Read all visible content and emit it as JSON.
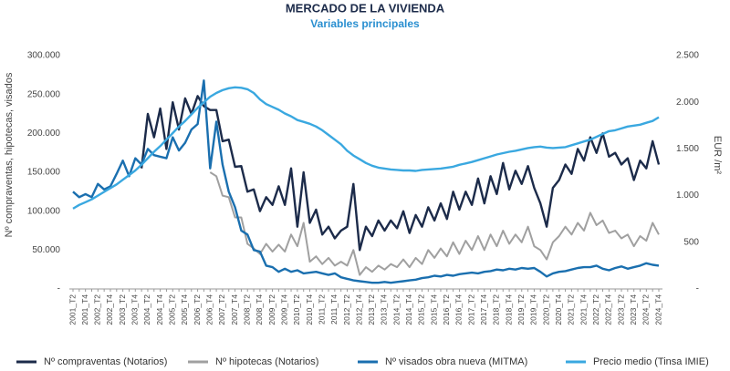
{
  "chart_data": {
    "type": "line",
    "title": "MERCADO DE LA VIVIENDA",
    "subtitle": "Variables principales",
    "y_label": "Nº compraventas, hipotecas, visados",
    "y2_label": "EUR /m²",
    "categories": [
      "2001_T2",
      null,
      "2001_T4",
      null,
      "2002_T2",
      null,
      "2002_T4",
      null,
      "2003_T2",
      null,
      "2003_T4",
      null,
      "2004_T2",
      null,
      "2004_T4",
      null,
      "2005_T2",
      null,
      "2005_T4",
      null,
      "2006_T2",
      null,
      "2006_T4",
      null,
      "2007_T2",
      null,
      "2007_T4",
      null,
      "2008_T2",
      null,
      "2008_T4",
      null,
      "2009_T2",
      null,
      "2009_T4",
      null,
      "2010_T2",
      null,
      "2010_T4",
      null,
      "2011_T2",
      null,
      "2011_T4",
      null,
      "2012_T2",
      null,
      "2012_T4",
      null,
      "2013_T2",
      null,
      "2013_T4",
      null,
      "2014_T2",
      null,
      "2014_T4",
      null,
      "2015_T2",
      null,
      "2015_T4",
      null,
      "2016_T2",
      null,
      "2016_T4",
      null,
      "2017_T2",
      null,
      "2017_T4",
      null,
      "2018_T2",
      null,
      "2018_T4",
      null,
      "2019_T2",
      null,
      "2019_T4",
      null,
      "2020_T2",
      null,
      "2020_T4",
      null,
      "2021_T2",
      null,
      "2021_T4",
      null,
      "2022_T2",
      null,
      "2022_T4",
      null,
      "2023_T2",
      null,
      "2023_T4",
      null,
      "2024_T2",
      null,
      "2024_T4"
    ],
    "series": [
      {
        "name": "Nº compraventas (Notarios)",
        "color": "#1c2b4a",
        "values": [
          null,
          null,
          null,
          null,
          null,
          null,
          null,
          null,
          null,
          null,
          null,
          155000,
          225000,
          195000,
          232000,
          180000,
          240000,
          205000,
          245000,
          225000,
          248000,
          235000,
          230000,
          230000,
          190000,
          192000,
          157000,
          158000,
          125000,
          128000,
          100000,
          118000,
          108000,
          132000,
          108000,
          155000,
          80000,
          150000,
          85000,
          102000,
          70000,
          80000,
          65000,
          75000,
          80000,
          135000,
          50000,
          80000,
          68000,
          88000,
          75000,
          88000,
          78000,
          100000,
          72000,
          95000,
          80000,
          105000,
          88000,
          110000,
          90000,
          125000,
          102000,
          125000,
          108000,
          142000,
          110000,
          145000,
          122000,
          162000,
          128000,
          152000,
          135000,
          158000,
          130000,
          110000,
          80000,
          130000,
          140000,
          160000,
          148000,
          180000,
          165000,
          195000,
          175000,
          200000,
          170000,
          175000,
          160000,
          168000,
          140000,
          165000,
          155000,
          190000,
          160000
        ]
      },
      {
        "name": "Nº hipotecas (Notarios)",
        "color": "#a0a0a0",
        "values": [
          null,
          null,
          null,
          null,
          null,
          null,
          null,
          null,
          null,
          null,
          null,
          null,
          null,
          null,
          null,
          null,
          null,
          null,
          null,
          null,
          null,
          null,
          150000,
          145000,
          120000,
          118000,
          92000,
          92000,
          58000,
          52000,
          45000,
          58000,
          48000,
          57000,
          48000,
          70000,
          55000,
          85000,
          35000,
          42000,
          32000,
          40000,
          30000,
          35000,
          30000,
          50000,
          18000,
          28000,
          22000,
          30000,
          25000,
          32000,
          28000,
          38000,
          28000,
          40000,
          32000,
          50000,
          40000,
          52000,
          42000,
          60000,
          45000,
          62000,
          50000,
          68000,
          50000,
          70000,
          55000,
          75000,
          58000,
          70000,
          60000,
          80000,
          55000,
          50000,
          38000,
          60000,
          68000,
          80000,
          70000,
          85000,
          75000,
          98000,
          82000,
          88000,
          72000,
          75000,
          65000,
          70000,
          55000,
          68000,
          62000,
          85000,
          70000
        ]
      },
      {
        "name": "Nº visados obra nueva (MITMA)",
        "color": "#1a6faf",
        "values": [
          125000,
          118000,
          122000,
          118000,
          135000,
          128000,
          132000,
          148000,
          165000,
          145000,
          168000,
          160000,
          180000,
          172000,
          170000,
          168000,
          195000,
          178000,
          188000,
          205000,
          212000,
          268000,
          155000,
          215000,
          160000,
          125000,
          105000,
          75000,
          70000,
          50000,
          48000,
          30000,
          28000,
          22000,
          26000,
          22000,
          24000,
          20000,
          21000,
          22000,
          20000,
          18000,
          20000,
          15000,
          13000,
          11000,
          10000,
          9000,
          8000,
          8000,
          9000,
          8000,
          9000,
          10000,
          11000,
          12000,
          14000,
          15000,
          17000,
          16000,
          18000,
          17000,
          19000,
          20000,
          21000,
          20000,
          22000,
          23000,
          25000,
          24000,
          26000,
          25000,
          27000,
          26000,
          27000,
          22000,
          16000,
          20000,
          22000,
          23000,
          25000,
          27000,
          28000,
          28000,
          30000,
          26000,
          24000,
          27000,
          29000,
          26000,
          28000,
          30000,
          33000,
          31000,
          30000
        ]
      },
      {
        "name": "Precio medio (Tinsa IMIE)",
        "color": "#3aa8e0",
        "axis": "y2",
        "values": [
          860,
          900,
          930,
          960,
          1000,
          1040,
          1080,
          1120,
          1170,
          1220,
          1270,
          1330,
          1400,
          1470,
          1530,
          1600,
          1670,
          1740,
          1800,
          1870,
          1940,
          2000,
          2060,
          2100,
          2130,
          2150,
          2160,
          2155,
          2140,
          2100,
          2030,
          1980,
          1950,
          1920,
          1880,
          1850,
          1810,
          1790,
          1770,
          1740,
          1700,
          1650,
          1600,
          1550,
          1480,
          1430,
          1390,
          1350,
          1320,
          1300,
          1290,
          1280,
          1275,
          1270,
          1270,
          1265,
          1275,
          1280,
          1285,
          1290,
          1300,
          1310,
          1330,
          1345,
          1360,
          1380,
          1400,
          1420,
          1440,
          1455,
          1470,
          1480,
          1495,
          1510,
          1520,
          1525,
          1515,
          1510,
          1515,
          1520,
          1540,
          1560,
          1580,
          1600,
          1630,
          1660,
          1690,
          1700,
          1720,
          1740,
          1750,
          1760,
          1780,
          1800,
          1840
        ]
      }
    ],
    "ylim": [
      0,
      300000
    ],
    "yticks": [
      {
        "value": 0,
        "label": "-"
      },
      {
        "value": 50000,
        "label": "50.000"
      },
      {
        "value": 100000,
        "label": "100.000"
      },
      {
        "value": 150000,
        "label": "150.000"
      },
      {
        "value": 200000,
        "label": "200.000"
      },
      {
        "value": 250000,
        "label": "250.000"
      },
      {
        "value": 300000,
        "label": "300.000"
      }
    ],
    "y2lim": [
      0,
      2500
    ],
    "y2ticks": [
      {
        "value": 0,
        "label": "-"
      },
      {
        "value": 500,
        "label": "500"
      },
      {
        "value": 1000,
        "label": "1.000"
      },
      {
        "value": 1500,
        "label": "1.500"
      },
      {
        "value": 2000,
        "label": "2.000"
      },
      {
        "value": 2500,
        "label": "2.500"
      }
    ],
    "grid": false,
    "legend": "bottom"
  }
}
